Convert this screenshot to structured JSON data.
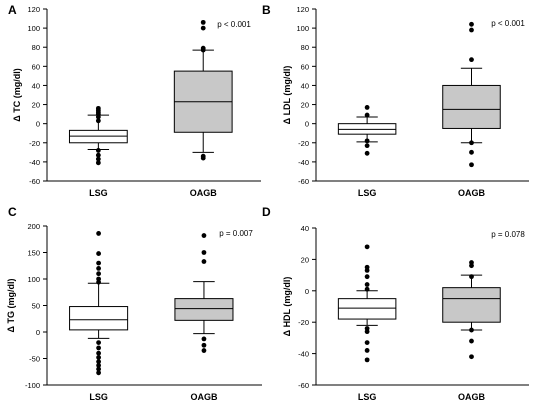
{
  "figure": {
    "boxColors": {
      "LSG": "#ffffff",
      "OAGB": "#c8c8c8"
    },
    "outlineColor": "#000000"
  },
  "chart_data": [
    {
      "type": "box",
      "panel": "A",
      "ylabel": "Δ TC (mg/dl)",
      "xlabel": "",
      "ylim": [
        -60,
        120
      ],
      "yticks": [
        -60,
        -40,
        -20,
        0,
        20,
        40,
        60,
        80,
        100,
        120
      ],
      "annotation": "p < 0.001",
      "categories": [
        "LSG",
        "OAGB"
      ],
      "boxes": [
        {
          "name": "LSG",
          "q1": -20,
          "median": -13,
          "q3": -7,
          "whisker_low": -27,
          "whisker_high": 9,
          "outliers": [
            16,
            14,
            12,
            10,
            7,
            3,
            -28,
            -33,
            -37,
            -41
          ]
        },
        {
          "name": "OAGB",
          "q1": -9,
          "median": 23,
          "q3": 55,
          "whisker_low": -30,
          "whisker_high": 77,
          "outliers": [
            106,
            100,
            79,
            77,
            -34,
            -36
          ]
        }
      ]
    },
    {
      "type": "box",
      "panel": "B",
      "ylabel": "Δ LDL (mg/dl)",
      "xlabel": "",
      "ylim": [
        -60,
        120
      ],
      "yticks": [
        -60,
        -40,
        -20,
        0,
        20,
        40,
        60,
        80,
        100,
        120
      ],
      "annotation": "p < 0.001",
      "categories": [
        "LSG",
        "OAGB"
      ],
      "boxes": [
        {
          "name": "LSG",
          "q1": -11,
          "median": -6,
          "q3": 0,
          "whisker_low": -19,
          "whisker_high": 7,
          "outliers": [
            17,
            9,
            -18,
            -23,
            -31
          ]
        },
        {
          "name": "OAGB",
          "q1": -5,
          "median": 15,
          "q3": 40,
          "whisker_low": -20,
          "whisker_high": 58,
          "outliers": [
            104,
            98,
            67,
            -20,
            -30,
            -43
          ]
        }
      ]
    },
    {
      "type": "box",
      "panel": "C",
      "ylabel": "Δ TG (mg/dl)",
      "xlabel": "",
      "ylim": [
        -100,
        200
      ],
      "yticks": [
        -100,
        -50,
        0,
        50,
        100,
        150,
        200
      ],
      "annotation": "p = 0.007",
      "categories": [
        "LSG",
        "OAGB"
      ],
      "boxes": [
        {
          "name": "LSG",
          "q1": 4,
          "median": 23,
          "q3": 48,
          "whisker_low": -12,
          "whisker_high": 92,
          "outliers": [
            186,
            148,
            130,
            120,
            110,
            100,
            94,
            -20,
            -30,
            -40,
            -48,
            -56,
            -63,
            -70,
            -77
          ]
        },
        {
          "name": "OAGB",
          "q1": 22,
          "median": 44,
          "q3": 63,
          "whisker_low": -3,
          "whisker_high": 95,
          "outliers": [
            182,
            150,
            133,
            -13,
            -25,
            -35
          ]
        }
      ]
    },
    {
      "type": "box",
      "panel": "D",
      "ylabel": "Δ HDL (mg/dl)",
      "xlabel": "",
      "ylim": [
        -60,
        40
      ],
      "yticks": [
        -60,
        -40,
        -20,
        0,
        20,
        40
      ],
      "annotation": "p = 0.078",
      "categories": [
        "LSG",
        "OAGB"
      ],
      "boxes": [
        {
          "name": "LSG",
          "q1": -18,
          "median": -11,
          "q3": -5,
          "whisker_low": -22,
          "whisker_high": 0,
          "outliers": [
            28,
            15,
            13,
            9,
            4,
            1,
            -24,
            -26,
            -33,
            -38,
            -44
          ]
        },
        {
          "name": "OAGB",
          "q1": -20,
          "median": -5,
          "q3": 2,
          "whisker_low": -25,
          "whisker_high": 10,
          "outliers": [
            18,
            16,
            9,
            -25,
            -32,
            -42
          ]
        }
      ]
    }
  ]
}
